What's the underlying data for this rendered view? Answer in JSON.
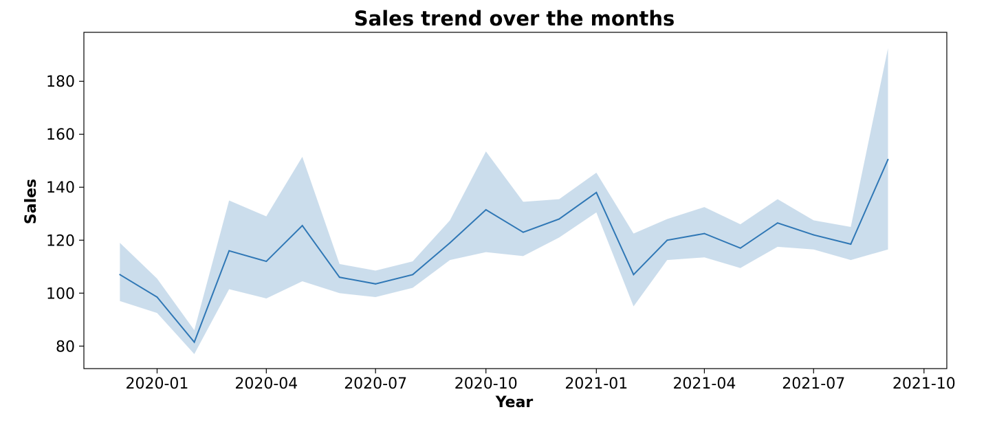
{
  "chart_data": {
    "type": "line",
    "title": "Sales trend over the months",
    "xlabel": "Year",
    "ylabel": "Sales",
    "x_tick_labels": [
      "2020-01",
      "2020-04",
      "2020-07",
      "2020-10",
      "2021-01",
      "2021-04",
      "2021-07",
      "2021-10"
    ],
    "y_ticks": [
      80,
      100,
      120,
      140,
      160,
      180
    ],
    "xlim": [
      "2019-11-01",
      "2021-10-20"
    ],
    "ylim": [
      71.5,
      198.5
    ],
    "grid": false,
    "colors": {
      "line": "#2f77b5",
      "band": "#2f77b5"
    },
    "series": [
      {
        "x": [
          "2019-12-01",
          "2020-01-01",
          "2020-02-01",
          "2020-03-01",
          "2020-04-01",
          "2020-05-01",
          "2020-06-01",
          "2020-07-01",
          "2020-08-01",
          "2020-09-01",
          "2020-10-01",
          "2020-11-01",
          "2020-12-01",
          "2021-01-01",
          "2021-02-01",
          "2021-03-01",
          "2021-04-01",
          "2021-05-01",
          "2021-06-01",
          "2021-07-01",
          "2021-08-01",
          "2021-09-01"
        ],
        "y": [
          107,
          98.5,
          81.5,
          116,
          112,
          125.5,
          106,
          103.5,
          107,
          119,
          131.5,
          123,
          128,
          138,
          107,
          120,
          122.5,
          117,
          126.5,
          122,
          118.5,
          150.5
        ],
        "lower": [
          97,
          92.5,
          77,
          101.5,
          98,
          104.5,
          100,
          98.5,
          102,
          112.5,
          115.5,
          114,
          121,
          130.5,
          95,
          112.5,
          113.5,
          109.5,
          117.5,
          116.5,
          112.5,
          116.5
        ],
        "upper": [
          119,
          105.5,
          86,
          135,
          129,
          151.5,
          111,
          108.5,
          112,
          127.5,
          153.5,
          134.5,
          135.5,
          145.5,
          122.5,
          128,
          132.5,
          126,
          135.5,
          127.5,
          125,
          192.5
        ]
      }
    ]
  }
}
